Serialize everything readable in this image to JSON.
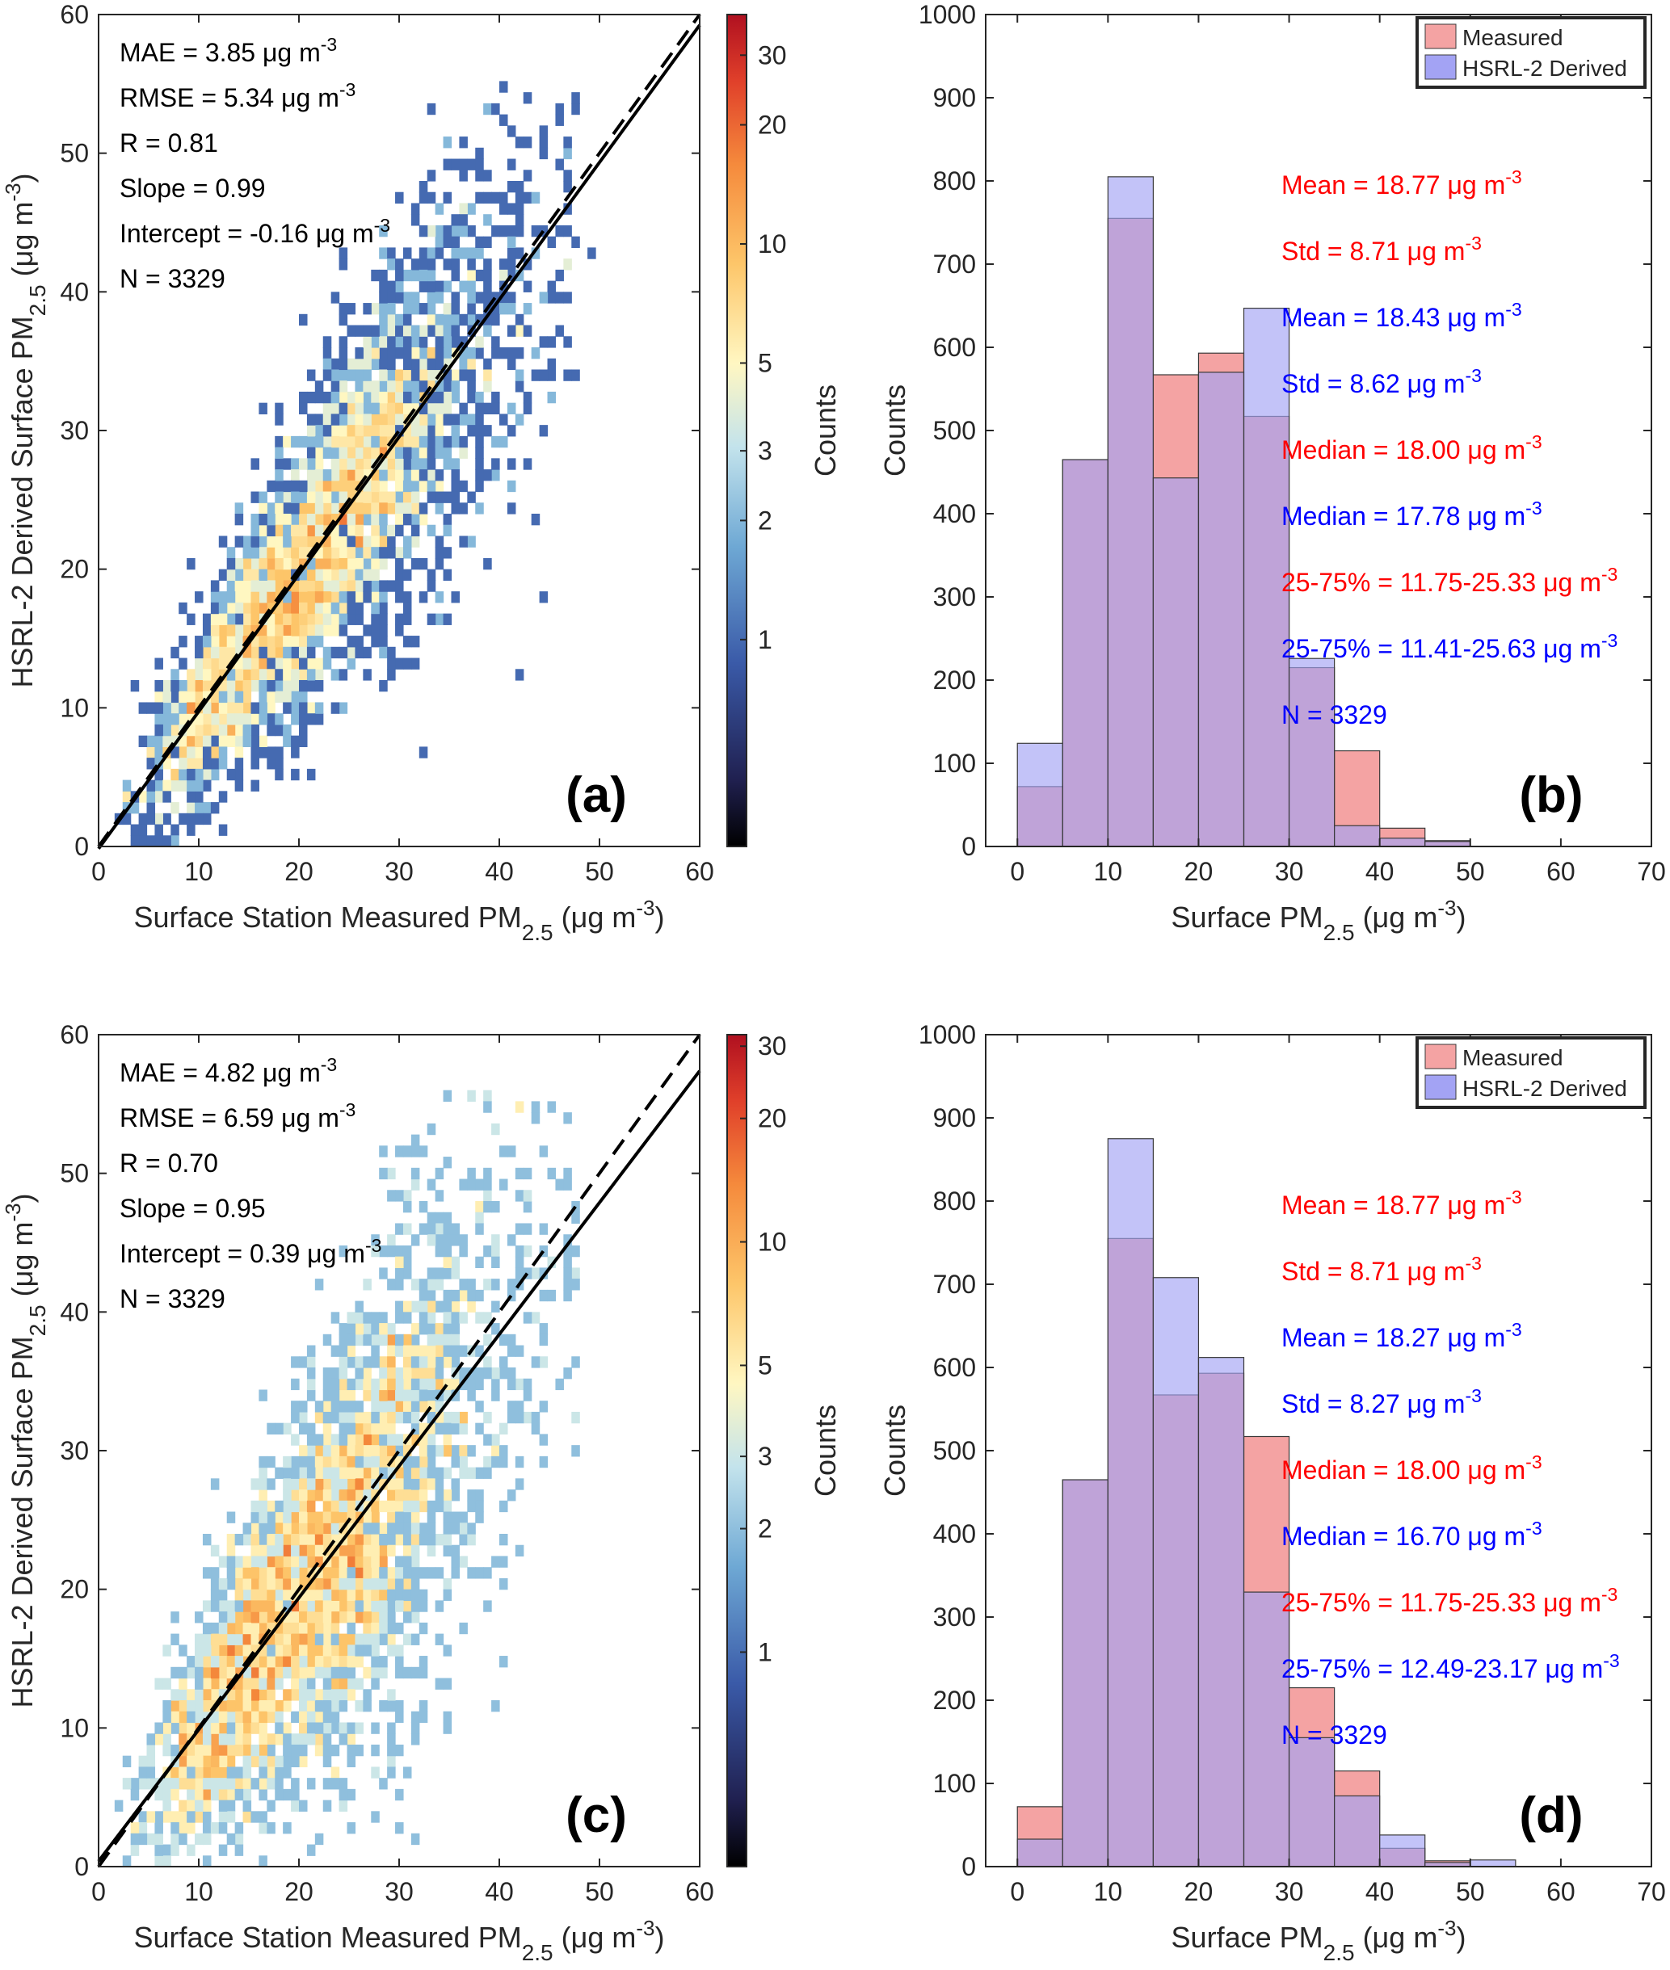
{
  "figure": {
    "panels": [
      "a",
      "b",
      "c",
      "d"
    ]
  },
  "chart_data": [
    {
      "panel": "a",
      "type": "heatmap",
      "subtype": "2d-histogram scatter density",
      "panel_label": "(a)",
      "xlabel": "Surface Station Measured PM",
      "xlabel_sub": "2.5",
      "xlabel_units": " (μg m",
      "xlabel_sup": "-3",
      "xlabel_close": ")",
      "ylabel": "HSRL-2 Derived Surface PM",
      "ylabel_sub": "2.5",
      "ylabel_units": " (μg m",
      "ylabel_sup": "-3",
      "ylabel_close": ")",
      "xlim": [
        0,
        60
      ],
      "ylim": [
        0,
        60
      ],
      "xticks": [
        "0",
        "10",
        "20",
        "30",
        "40",
        "50",
        "60"
      ],
      "yticks": [
        "0",
        "10",
        "20",
        "30",
        "40",
        "50",
        "60"
      ],
      "colorbar": {
        "label": "Counts",
        "ticks": [
          "1",
          "2",
          "3",
          "5",
          "10",
          "20",
          "30"
        ],
        "tick_values": [
          1,
          2,
          3,
          5,
          10,
          20,
          30
        ],
        "range": [
          0.3,
          38
        ],
        "scale": "log"
      },
      "stats": [
        {
          "text": "MAE = 3.85 μg m",
          "sup": "-3"
        },
        {
          "text": "RMSE = 5.34 μg m",
          "sup": "-3"
        },
        {
          "text": "R = 0.81",
          "sup": ""
        },
        {
          "text": "Slope = 0.99",
          "sup": ""
        },
        {
          "text": "Intercept = -0.16 μg m",
          "sup": "-3"
        },
        {
          "text": "N = 3329",
          "sup": ""
        }
      ],
      "fit_line": {
        "slope": 0.99,
        "intercept": -0.16,
        "style": "solid"
      },
      "one_to_one_line": {
        "slope": 1,
        "intercept": 0,
        "style": "dashed"
      },
      "density_model": {
        "spread": 5.0,
        "peak_count": 32,
        "n": 3329,
        "seed": 11
      }
    },
    {
      "panel": "b",
      "type": "bar",
      "subtype": "overlapping histogram",
      "panel_label": "(b)",
      "xlabel": "Surface PM",
      "xlabel_sub": "2.5",
      "xlabel_units": " (μg m",
      "xlabel_sup": "-3",
      "xlabel_close": ")",
      "ylabel": "Counts",
      "xlim": [
        -3.5,
        70
      ],
      "ylim": [
        0,
        1000
      ],
      "xticks": [
        "0",
        "10",
        "20",
        "30",
        "40",
        "50",
        "60",
        "70"
      ],
      "yticks": [
        "0",
        "100",
        "200",
        "300",
        "400",
        "500",
        "600",
        "700",
        "800",
        "900",
        "1000"
      ],
      "bin_edges": [
        0,
        5,
        10,
        15,
        20,
        25,
        30,
        35,
        40,
        45,
        50,
        55
      ],
      "legend": {
        "position": "top-right",
        "entries": [
          "Measured",
          "HSRL-2 Derived"
        ]
      },
      "series": [
        {
          "name": "Measured",
          "color": "#f4a3a3",
          "values": [
            72,
            465,
            755,
            567,
            593,
            517,
            215,
            115,
            22,
            7,
            0
          ]
        },
        {
          "name": "HSRL-2 Derived",
          "color": "#a3a3f4",
          "values": [
            124,
            465,
            805,
            443,
            570,
            647,
            226,
            25,
            10,
            6,
            0
          ]
        }
      ],
      "stats": [
        {
          "text": "Mean = 18.77 μg m",
          "sup": "-3",
          "color": "#ff0000"
        },
        {
          "text": "Std = 8.71 μg m",
          "sup": "-3",
          "color": "#ff0000"
        },
        {
          "text": "Mean = 18.43 μg m",
          "sup": "-3",
          "color": "#0000ff"
        },
        {
          "text": "Std = 8.62 μg m",
          "sup": "-3",
          "color": "#0000ff"
        },
        {
          "text": "Median = 18.00 μg m",
          "sup": "-3",
          "color": "#ff0000"
        },
        {
          "text": "Median = 17.78 μg m",
          "sup": "-3",
          "color": "#0000ff"
        },
        {
          "text": "25-75% = 11.75-25.33 μg m",
          "sup": "-3",
          "color": "#ff0000"
        },
        {
          "text": "25-75% = 11.41-25.63 μg m",
          "sup": "-3",
          "color": "#0000ff"
        },
        {
          "text": "N = 3329",
          "sup": "",
          "color": "#0000ff"
        }
      ]
    },
    {
      "panel": "c",
      "type": "heatmap",
      "subtype": "2d-histogram scatter density",
      "panel_label": "(c)",
      "xlabel": "Surface Station Measured PM",
      "xlabel_sub": "2.5",
      "xlabel_units": " (μg m",
      "xlabel_sup": "-3",
      "xlabel_close": ")",
      "ylabel": "HSRL-2 Derived Surface PM",
      "ylabel_sub": "2.5",
      "ylabel_units": " (μg m",
      "ylabel_sup": "-3",
      "ylabel_close": ")",
      "xlim": [
        0,
        60
      ],
      "ylim": [
        0,
        60
      ],
      "xticks": [
        "0",
        "10",
        "20",
        "30",
        "40",
        "50",
        "60"
      ],
      "yticks": [
        "0",
        "10",
        "20",
        "30",
        "40",
        "50",
        "60"
      ],
      "colorbar": {
        "label": "Counts",
        "ticks": [
          "1",
          "2",
          "3",
          "5",
          "10",
          "20",
          "30"
        ],
        "tick_values": [
          1,
          2,
          3,
          5,
          10,
          20,
          30
        ],
        "range": [
          0.3,
          32
        ],
        "scale": "log"
      },
      "stats": [
        {
          "text": "MAE = 4.82 μg m",
          "sup": "-3"
        },
        {
          "text": "RMSE = 6.59 μg m",
          "sup": "-3"
        },
        {
          "text": "R = 0.70",
          "sup": ""
        },
        {
          "text": "Slope = 0.95",
          "sup": ""
        },
        {
          "text": "Intercept = 0.39 μg m",
          "sup": "-3"
        },
        {
          "text": "N = 3329",
          "sup": ""
        }
      ],
      "fit_line": {
        "slope": 0.95,
        "intercept": 0.39,
        "style": "solid"
      },
      "one_to_one_line": {
        "slope": 1,
        "intercept": 0,
        "style": "dashed"
      },
      "density_model": {
        "spread": 6.4,
        "peak_count": 28,
        "n": 3329,
        "seed": 23
      }
    },
    {
      "panel": "d",
      "type": "bar",
      "subtype": "overlapping histogram",
      "panel_label": "(d)",
      "xlabel": "Surface PM",
      "xlabel_sub": "2.5",
      "xlabel_units": " (μg m",
      "xlabel_sup": "-3",
      "xlabel_close": ")",
      "ylabel": "Counts",
      "xlim": [
        -3.5,
        70
      ],
      "ylim": [
        0,
        1000
      ],
      "xticks": [
        "0",
        "10",
        "20",
        "30",
        "40",
        "50",
        "60",
        "70"
      ],
      "yticks": [
        "0",
        "100",
        "200",
        "300",
        "400",
        "500",
        "600",
        "700",
        "800",
        "900",
        "1000"
      ],
      "bin_edges": [
        0,
        5,
        10,
        15,
        20,
        25,
        30,
        35,
        40,
        45,
        50,
        55
      ],
      "legend": {
        "position": "top-right",
        "entries": [
          "Measured",
          "HSRL-2 Derived"
        ]
      },
      "series": [
        {
          "name": "Measured",
          "color": "#f4a3a3",
          "values": [
            72,
            465,
            755,
            567,
            593,
            517,
            215,
            115,
            22,
            7,
            0
          ]
        },
        {
          "name": "HSRL-2 Derived",
          "color": "#a3a3f4",
          "values": [
            33,
            465,
            875,
            708,
            612,
            330,
            155,
            85,
            38,
            5,
            8
          ]
        }
      ],
      "stats": [
        {
          "text": "Mean = 18.77 μg m",
          "sup": "-3",
          "color": "#ff0000"
        },
        {
          "text": "Std = 8.71 μg m",
          "sup": "-3",
          "color": "#ff0000"
        },
        {
          "text": "Mean = 18.27 μg m",
          "sup": "-3",
          "color": "#0000ff"
        },
        {
          "text": "Std = 8.27 μg m",
          "sup": "-3",
          "color": "#0000ff"
        },
        {
          "text": "Median = 18.00 μg m",
          "sup": "-3",
          "color": "#ff0000"
        },
        {
          "text": "Median = 16.70 μg m",
          "sup": "-3",
          "color": "#0000ff"
        },
        {
          "text": "25-75% = 11.75-25.33 μg m",
          "sup": "-3",
          "color": "#ff0000"
        },
        {
          "text": "25-75% = 12.49-23.17 μg m",
          "sup": "-3",
          "color": "#0000ff"
        },
        {
          "text": "N = 3329",
          "sup": "",
          "color": "#0000ff"
        }
      ]
    }
  ]
}
